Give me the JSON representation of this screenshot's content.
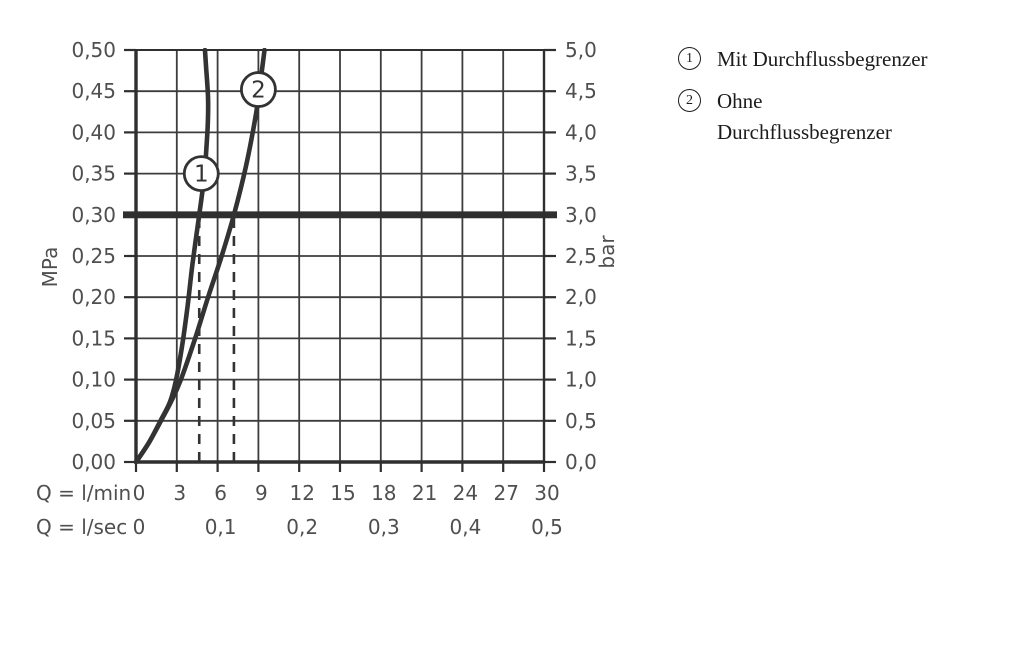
{
  "legend": {
    "items": [
      {
        "marker": "1",
        "line1": "Mit Durchflussbegrenzer",
        "line2": ""
      },
      {
        "marker": "2",
        "line1": "Ohne",
        "line2": "Durchflussbegrenzer"
      }
    ]
  },
  "chart_data": {
    "type": "line",
    "title": "",
    "x_axis": {
      "label_primary": "Q = l/min",
      "ticks_primary": [
        "0",
        "3",
        "6",
        "9",
        "12",
        "15",
        "18",
        "21",
        "24",
        "27",
        "30"
      ],
      "tick_values_lmin": [
        0,
        3,
        6,
        9,
        12,
        15,
        18,
        21,
        24,
        27,
        30
      ],
      "label_secondary": "Q = l/sec",
      "ticks_secondary": [
        "0",
        "0,1",
        "0,2",
        "0,3",
        "0,4",
        "0,5"
      ],
      "tick_values_secondary_lmin": [
        0,
        6,
        12,
        18,
        24,
        30
      ],
      "range_lmin": [
        0,
        30
      ]
    },
    "y_axis_left": {
      "label": "MPa",
      "ticks": [
        "0,00",
        "0,05",
        "0,10",
        "0,15",
        "0,20",
        "0,25",
        "0,30",
        "0,35",
        "0,40",
        "0,45",
        "0,50"
      ],
      "tick_values": [
        0,
        0.05,
        0.1,
        0.15,
        0.2,
        0.25,
        0.3,
        0.35,
        0.4,
        0.45,
        0.5
      ],
      "range": [
        0,
        0.5
      ]
    },
    "y_axis_right": {
      "label": "bar",
      "ticks": [
        "0,0",
        "0,5",
        "1,0",
        "1,5",
        "2,0",
        "2,5",
        "3,0",
        "3,5",
        "4,0",
        "4,5",
        "5,0"
      ],
      "range": [
        0,
        5
      ]
    },
    "grid": true,
    "reference_line": {
      "y_mpa": 0.3,
      "y_bar": 3.0
    },
    "dashed_guides_x_lmin": [
      4.65,
      7.2
    ],
    "series": [
      {
        "name": "Mit Durchflussbegrenzer",
        "marker": "1",
        "marker_at": {
          "x": 4.8,
          "y": 0.35
        },
        "points": [
          [
            0,
            0
          ],
          [
            0.9,
            0.022
          ],
          [
            1.8,
            0.05
          ],
          [
            2.5,
            0.073
          ],
          [
            2.95,
            0.1
          ],
          [
            3.4,
            0.142
          ],
          [
            3.8,
            0.19
          ],
          [
            4.15,
            0.24
          ],
          [
            4.65,
            0.3
          ],
          [
            5.0,
            0.345
          ],
          [
            5.25,
            0.4
          ],
          [
            5.3,
            0.44
          ],
          [
            5.15,
            0.48
          ],
          [
            5.07,
            0.5
          ]
        ]
      },
      {
        "name": "Ohne Durchflussbegrenzer",
        "marker": "2",
        "marker_at": {
          "x": 9.0,
          "y": 0.452
        },
        "points": [
          [
            0,
            0
          ],
          [
            1.0,
            0.025
          ],
          [
            2.0,
            0.055
          ],
          [
            2.6,
            0.074
          ],
          [
            3.3,
            0.1
          ],
          [
            4.35,
            0.15
          ],
          [
            5.3,
            0.2
          ],
          [
            6.3,
            0.25
          ],
          [
            7.2,
            0.3
          ],
          [
            8.1,
            0.36
          ],
          [
            8.8,
            0.42
          ],
          [
            9.1,
            0.455
          ],
          [
            9.45,
            0.5
          ]
        ]
      }
    ],
    "colors": {
      "line": "#333333",
      "grid": "#3d3d3d",
      "axis": "#2f2f2f",
      "text": "#4f4f4f",
      "legend_text": "#1c1c1c",
      "background": "#ffffff"
    }
  }
}
